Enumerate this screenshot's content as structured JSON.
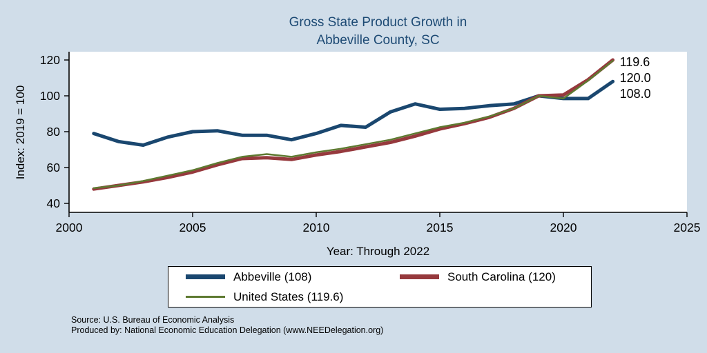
{
  "title": {
    "line1": "Gross State Product Growth in",
    "line2": "Abbeville County, SC"
  },
  "axes": {
    "y_label": "Index: 2019 = 100",
    "x_label": "Year: Through 2022"
  },
  "footnotes": {
    "source": "Source: U.S. Bureau of Economic Analysis",
    "produced_by": "Produced by: National Economic Education Delegation (www.NEEDelegation.org)"
  },
  "colors": {
    "background": "#d0dde9",
    "title_text": "#1d4a74",
    "abbeville": "#1a476f",
    "south_carolina": "#96393d",
    "united_states": "#5e7a31"
  },
  "chart_data": {
    "type": "line",
    "title": "Gross State Product Growth in Abbeville County, SC",
    "xlabel": "Year: Through 2022",
    "ylabel": "Index: 2019 = 100",
    "xlim": [
      2000,
      2025
    ],
    "ylim": [
      40,
      120
    ],
    "x_ticks": [
      2000,
      2005,
      2010,
      2015,
      2020,
      2025
    ],
    "y_ticks": [
      40,
      60,
      80,
      100,
      120
    ],
    "grid": false,
    "legend_position": "bottom",
    "x": [
      2001,
      2002,
      2003,
      2004,
      2005,
      2006,
      2007,
      2008,
      2009,
      2010,
      2011,
      2012,
      2013,
      2014,
      2015,
      2016,
      2017,
      2018,
      2019,
      2020,
      2021,
      2022
    ],
    "series": [
      {
        "name": "Abbeville",
        "legend_label": "Abbeville  (108)",
        "color": "#1a476f",
        "line_width": 5,
        "swatch_height": 7,
        "end_label": "108.0",
        "values": [
          79,
          74.5,
          72.5,
          77,
          80,
          80.5,
          78,
          78,
          75.5,
          79,
          83.5,
          82.5,
          91,
          95.5,
          92.5,
          93,
          94.5,
          95.5,
          100,
          98.5,
          98.5,
          108
        ]
      },
      {
        "name": "South Carolina",
        "legend_label": "South Carolina (120)",
        "color": "#96393d",
        "line_width": 5,
        "swatch_height": 7,
        "end_label": "120.0",
        "values": [
          48,
          50,
          52,
          54.5,
          57.5,
          61.5,
          65,
          65.5,
          64.5,
          67,
          69,
          71.5,
          74,
          77.5,
          81.5,
          84.5,
          88,
          93,
          100,
          100.5,
          109,
          120
        ]
      },
      {
        "name": "United States",
        "legend_label": "United States (119.6)",
        "color": "#5e7a31",
        "line_width": 2.5,
        "swatch_height": 3,
        "end_label": "119.6",
        "values": [
          48.5,
          50,
          52.5,
          55.5,
          58.5,
          62.5,
          66,
          67.5,
          66,
          68.5,
          70.5,
          73,
          75.5,
          79,
          82.5,
          85,
          88.5,
          93,
          100,
          98.5,
          108.5,
          119.6
        ]
      }
    ],
    "end_labels_top_to_bottom": [
      "119.6",
      "120.0",
      "108.0"
    ]
  }
}
